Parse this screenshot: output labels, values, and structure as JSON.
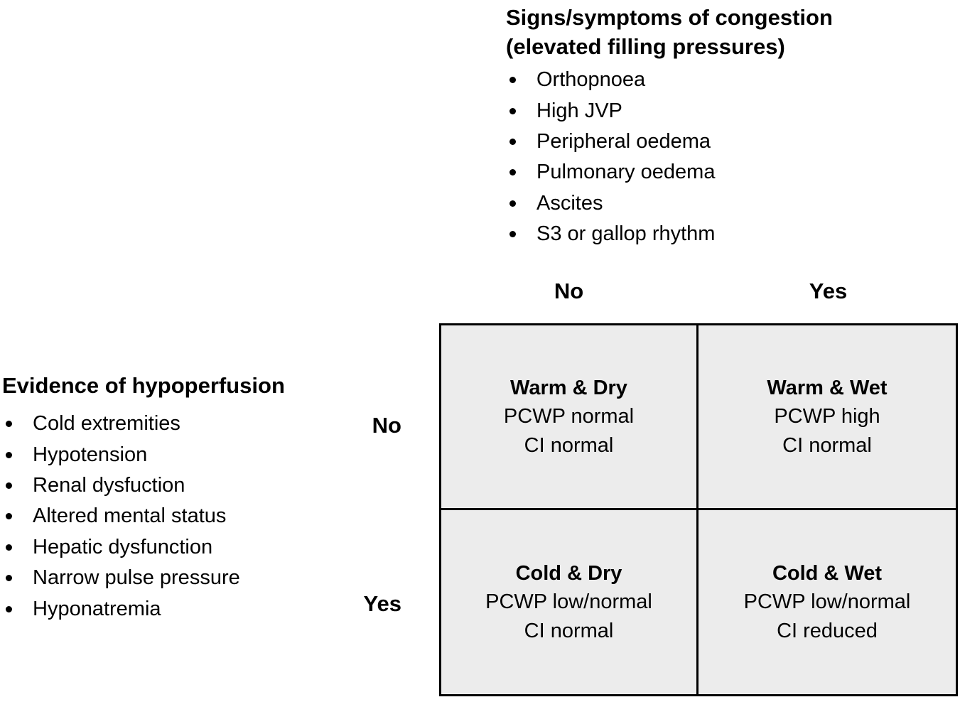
{
  "figure": {
    "congestion": {
      "title_line1": "Signs/symptoms of congestion",
      "title_line2": "(elevated filling pressures)",
      "items": [
        "Orthopnoea",
        "High JVP",
        "Peripheral oedema",
        "Pulmonary oedema",
        "Ascites",
        "S3 or gallop rhythm"
      ]
    },
    "hypoperfusion": {
      "title": "Evidence of hypoperfusion",
      "items": [
        "Cold extremities",
        "Hypotension",
        "Renal dysfuction",
        "Altered mental status",
        "Hepatic dysfunction",
        "Narrow pulse pressure",
        "Hyponatremia"
      ]
    },
    "matrix": {
      "column_no": "No",
      "column_yes": "Yes",
      "row_no": "No",
      "row_yes": "Yes",
      "cells": {
        "warm_dry": {
          "title": "Warm & Dry",
          "pcwp": "PCWP normal",
          "ci": "CI normal"
        },
        "warm_wet": {
          "title": "Warm & Wet",
          "pcwp": "PCWP high",
          "ci": "CI normal"
        },
        "cold_dry": {
          "title": "Cold & Dry",
          "pcwp": "PCWP low/normal",
          "ci": "CI normal"
        },
        "cold_wet": {
          "title": "Cold & Wet",
          "pcwp": "PCWP low/normal",
          "ci": "CI reduced"
        }
      }
    },
    "colors": {
      "page_background": "#ffffff",
      "cell_background": "#ececec",
      "border": "#000000",
      "text": "#000000"
    }
  }
}
